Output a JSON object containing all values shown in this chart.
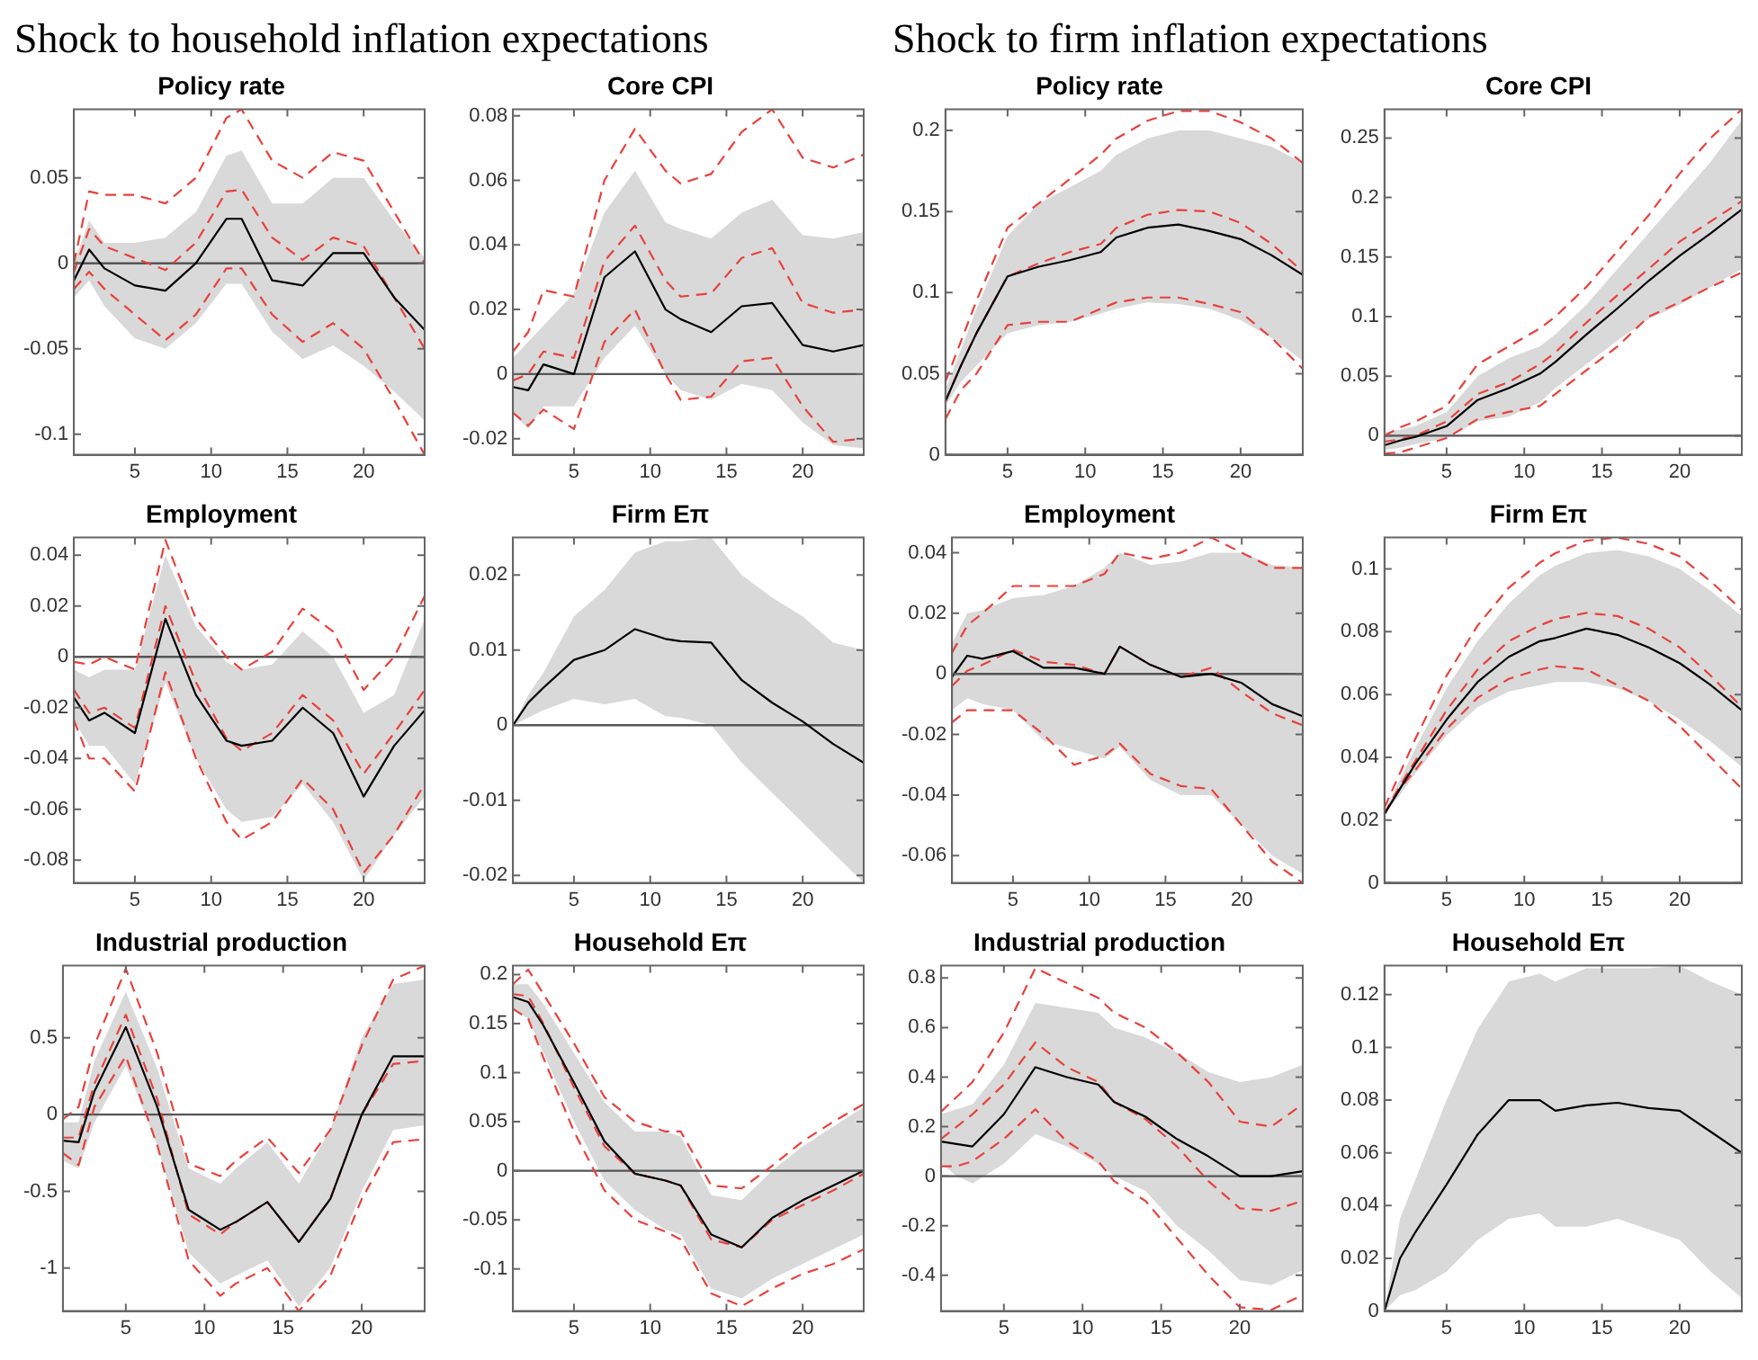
{
  "chart_data": [
    {
      "type": "line",
      "title": "Policy rate",
      "annotations": [
        "Shock to household inflation expectations"
      ],
      "x": [
        1,
        2,
        3,
        5,
        7,
        9,
        11,
        12,
        14,
        16,
        18,
        20,
        22,
        24
      ],
      "xlim": [
        1,
        24
      ],
      "xticks": [
        5,
        10,
        15,
        20
      ],
      "ylim": [
        -0.112,
        0.09
      ],
      "yticks": [
        -0.1,
        -0.05,
        0,
        0.05
      ],
      "ref_lines": [
        {
          "axis": "y",
          "value": 0,
          "color": "#555555"
        }
      ],
      "series": [
        {
          "color": "#000000",
          "values": [
            -0.01,
            0.008,
            -0.003,
            -0.013,
            -0.016,
            0.0,
            0.026,
            0.026,
            -0.01,
            -0.013,
            0.006,
            0.006,
            -0.02,
            -0.039
          ],
          "lower": [
            -0.02,
            -0.01,
            -0.025,
            -0.044,
            -0.05,
            -0.035,
            -0.012,
            -0.012,
            -0.04,
            -0.056,
            -0.048,
            -0.06,
            -0.075,
            -0.092
          ],
          "upper": [
            0.0,
            0.025,
            0.012,
            0.012,
            0.015,
            0.03,
            0.063,
            0.066,
            0.035,
            0.035,
            0.05,
            0.05,
            0.025,
            0.003
          ]
        },
        {
          "color": "#e8413c",
          "line_style": "dashed",
          "values": [
            -0.005,
            0.02,
            0.01,
            0.003,
            -0.004,
            0.012,
            0.042,
            0.043,
            0.015,
            0.002,
            0.015,
            0.01,
            -0.02,
            -0.05
          ]
        },
        {
          "color": "#e8413c",
          "line_style": "dashed",
          "values": [
            0.0,
            0.042,
            0.04,
            0.04,
            0.035,
            0.05,
            0.085,
            0.09,
            0.06,
            0.05,
            0.065,
            0.06,
            0.03,
            0.0
          ]
        },
        {
          "color": "#e8413c",
          "line_style": "dashed",
          "values": [
            -0.015,
            -0.005,
            -0.015,
            -0.03,
            -0.045,
            -0.03,
            -0.003,
            -0.003,
            -0.03,
            -0.046,
            -0.035,
            -0.05,
            -0.08,
            -0.112
          ]
        }
      ]
    },
    {
      "type": "line",
      "title": "Core CPI",
      "x": [
        1,
        2,
        3,
        5,
        7,
        9,
        11,
        12,
        14,
        16,
        18,
        20,
        22,
        24
      ],
      "xlim": [
        1,
        24
      ],
      "xticks": [
        5,
        10,
        15,
        20
      ],
      "ylim": [
        -0.025,
        0.082
      ],
      "yticks": [
        -0.02,
        0,
        0.02,
        0.04,
        0.06,
        0.08
      ],
      "ref_lines": [
        {
          "axis": "y",
          "value": 0,
          "color": "#555555"
        }
      ],
      "series": [
        {
          "color": "#000000",
          "values": [
            -0.004,
            -0.005,
            0.003,
            0.0,
            0.03,
            0.038,
            0.02,
            0.017,
            0.013,
            0.021,
            0.022,
            0.009,
            0.007,
            0.009
          ],
          "lower": [
            -0.012,
            -0.017,
            -0.01,
            -0.01,
            0.005,
            0.015,
            0.0,
            -0.005,
            -0.008,
            -0.003,
            -0.005,
            -0.015,
            -0.022,
            -0.023
          ],
          "upper": [
            0.005,
            0.01,
            0.015,
            0.025,
            0.05,
            0.063,
            0.047,
            0.045,
            0.042,
            0.05,
            0.054,
            0.043,
            0.042,
            0.044
          ]
        },
        {
          "color": "#e8413c",
          "line_style": "dashed",
          "values": [
            -0.002,
            0.0,
            0.007,
            0.005,
            0.035,
            0.046,
            0.029,
            0.024,
            0.025,
            0.036,
            0.039,
            0.022,
            0.019,
            0.02
          ]
        },
        {
          "color": "#e8413c",
          "line_style": "dashed",
          "values": [
            0.007,
            0.013,
            0.026,
            0.024,
            0.06,
            0.076,
            0.063,
            0.059,
            0.062,
            0.075,
            0.082,
            0.067,
            0.064,
            0.068
          ]
        },
        {
          "color": "#e8413c",
          "line_style": "dashed",
          "values": [
            -0.012,
            -0.016,
            -0.011,
            -0.017,
            0.01,
            0.02,
            0.0,
            -0.008,
            -0.007,
            0.004,
            0.005,
            -0.01,
            -0.021,
            -0.02
          ]
        }
      ]
    },
    {
      "type": "line",
      "title": "Employment",
      "x": [
        1,
        2,
        3,
        5,
        7,
        9,
        11,
        12,
        14,
        16,
        18,
        20,
        22,
        24
      ],
      "xlim": [
        1,
        24
      ],
      "xticks": [
        5,
        10,
        15,
        20
      ],
      "ylim": [
        -0.089,
        0.047
      ],
      "yticks": [
        -0.08,
        -0.06,
        -0.04,
        -0.02,
        0,
        0.02,
        0.04
      ],
      "ref_lines": [
        {
          "axis": "y",
          "value": 0,
          "color": "#555555"
        }
      ],
      "series": [
        {
          "color": "#000000",
          "values": [
            -0.016,
            -0.025,
            -0.022,
            -0.03,
            0.015,
            -0.015,
            -0.033,
            -0.035,
            -0.033,
            -0.02,
            -0.03,
            -0.055,
            -0.035,
            -0.021
          ],
          "lower": [
            -0.025,
            -0.035,
            -0.035,
            -0.05,
            -0.01,
            -0.04,
            -0.06,
            -0.065,
            -0.063,
            -0.05,
            -0.065,
            -0.088,
            -0.07,
            -0.055
          ],
          "upper": [
            -0.005,
            -0.008,
            -0.005,
            -0.005,
            0.04,
            0.012,
            -0.002,
            -0.005,
            -0.003,
            0.01,
            0.0,
            -0.022,
            -0.015,
            0.015
          ]
        },
        {
          "color": "#e8413c",
          "line_style": "dashed",
          "values": [
            -0.013,
            -0.022,
            -0.02,
            -0.028,
            0.02,
            -0.01,
            -0.032,
            -0.037,
            -0.03,
            -0.015,
            -0.025,
            -0.046,
            -0.03,
            -0.013
          ]
        },
        {
          "color": "#e8413c",
          "line_style": "dashed",
          "values": [
            -0.002,
            -0.003,
            0.0,
            -0.005,
            0.046,
            0.015,
            0.0,
            -0.005,
            0.002,
            0.019,
            0.01,
            -0.013,
            0.0,
            0.024
          ]
        },
        {
          "color": "#e8413c",
          "line_style": "dashed",
          "values": [
            -0.025,
            -0.04,
            -0.04,
            -0.053,
            -0.006,
            -0.04,
            -0.065,
            -0.072,
            -0.065,
            -0.048,
            -0.06,
            -0.085,
            -0.07,
            -0.05
          ]
        }
      ]
    },
    {
      "type": "line",
      "title": "Firm Eπ",
      "x": [
        1,
        2,
        3,
        5,
        7,
        9,
        11,
        12,
        14,
        16,
        18,
        20,
        22,
        24
      ],
      "xlim": [
        1,
        24
      ],
      "xticks": [
        5,
        10,
        15,
        20
      ],
      "ylim": [
        -0.021,
        0.025
      ],
      "yticks": [
        -0.02,
        -0.01,
        0,
        0.01,
        0.02
      ],
      "ref_lines": [
        {
          "axis": "y",
          "value": 0,
          "color": "#555555"
        }
      ],
      "series": [
        {
          "color": "#000000",
          "values": [
            0.0,
            0.003,
            0.005,
            0.0087,
            0.01,
            0.0128,
            0.0115,
            0.0112,
            0.011,
            0.006,
            0.003,
            0.0005,
            -0.0025,
            -0.005
          ],
          "lower": [
            0.0,
            0.001,
            0.002,
            0.0035,
            0.0028,
            0.0035,
            0.0012,
            0.001,
            0.0,
            -0.005,
            -0.009,
            -0.013,
            -0.017,
            -0.021
          ],
          "upper": [
            0.0,
            0.004,
            0.007,
            0.0145,
            0.018,
            0.023,
            0.0245,
            0.0245,
            0.025,
            0.02,
            0.017,
            0.0145,
            0.011,
            0.01
          ]
        }
      ]
    },
    {
      "type": "line",
      "title": "Industrial production",
      "x": [
        1,
        2,
        3,
        5,
        7,
        9,
        11,
        12,
        14,
        16,
        18,
        20,
        22,
        24
      ],
      "xlim": [
        1,
        24
      ],
      "xticks": [
        5,
        10,
        15,
        20
      ],
      "ylim": [
        -1.28,
        0.97
      ],
      "yticks": [
        -1,
        -0.5,
        0,
        0.5
      ],
      "ref_lines": [
        {
          "axis": "y",
          "value": 0,
          "color": "#555555"
        }
      ],
      "series": [
        {
          "color": "#000000",
          "values": [
            -0.17,
            -0.18,
            0.15,
            0.57,
            0.05,
            -0.62,
            -0.75,
            -0.7,
            -0.57,
            -0.83,
            -0.55,
            0.0,
            0.38,
            0.38
          ],
          "lower": [
            -0.3,
            -0.35,
            -0.05,
            0.32,
            -0.2,
            -0.9,
            -1.1,
            -1.05,
            -0.95,
            -1.25,
            -1.0,
            -0.5,
            -0.1,
            -0.07
          ],
          "upper": [
            -0.05,
            -0.05,
            0.35,
            0.8,
            0.3,
            -0.35,
            -0.45,
            -0.35,
            -0.18,
            -0.45,
            -0.1,
            0.5,
            0.85,
            0.88
          ]
        },
        {
          "color": "#e8413c",
          "line_style": "dashed",
          "values": [
            -0.15,
            -0.15,
            0.2,
            0.65,
            0.1,
            -0.65,
            -0.78,
            -0.7,
            -0.57,
            -0.83,
            -0.55,
            0.0,
            0.33,
            0.35
          ]
        },
        {
          "color": "#e8413c",
          "line_style": "dashed",
          "values": [
            -0.03,
            0.05,
            0.45,
            0.95,
            0.4,
            -0.32,
            -0.4,
            -0.3,
            -0.15,
            -0.38,
            -0.1,
            0.45,
            0.88,
            0.97
          ]
        },
        {
          "color": "#e8413c",
          "line_style": "dashed",
          "values": [
            -0.25,
            -0.33,
            0.05,
            0.38,
            -0.2,
            -0.95,
            -1.18,
            -1.1,
            -1.0,
            -1.28,
            -1.05,
            -0.55,
            -0.18,
            -0.16
          ]
        }
      ]
    },
    {
      "type": "line",
      "title": "Household Eπ",
      "x": [
        1,
        2,
        3,
        5,
        7,
        9,
        11,
        12,
        14,
        16,
        18,
        20,
        22,
        24
      ],
      "xlim": [
        1,
        24
      ],
      "xticks": [
        5,
        10,
        15,
        20
      ],
      "ylim": [
        -0.143,
        0.209
      ],
      "yticks": [
        -0.1,
        -0.05,
        0,
        0.05,
        0.1,
        0.15,
        0.2
      ],
      "ref_lines": [
        {
          "axis": "y",
          "value": 0,
          "color": "#555555"
        }
      ],
      "series": [
        {
          "color": "#000000",
          "values": [
            0.177,
            0.172,
            0.148,
            0.09,
            0.03,
            -0.003,
            -0.01,
            -0.015,
            -0.065,
            -0.078,
            -0.048,
            -0.03,
            -0.015,
            0.0
          ],
          "lower": [
            0.165,
            0.155,
            0.12,
            0.05,
            -0.01,
            -0.04,
            -0.06,
            -0.065,
            -0.12,
            -0.13,
            -0.11,
            -0.095,
            -0.08,
            -0.065
          ],
          "upper": [
            0.19,
            0.19,
            0.17,
            0.12,
            0.07,
            0.04,
            0.04,
            0.035,
            -0.025,
            -0.03,
            0.0,
            0.025,
            0.045,
            0.065
          ]
        },
        {
          "color": "#e8413c",
          "line_style": "dashed",
          "values": [
            0.18,
            0.178,
            0.15,
            0.085,
            0.025,
            -0.003,
            -0.01,
            -0.015,
            -0.07,
            -0.078,
            -0.05,
            -0.035,
            -0.02,
            -0.003
          ]
        },
        {
          "color": "#e8413c",
          "line_style": "dashed",
          "values": [
            0.19,
            0.205,
            0.18,
            0.13,
            0.075,
            0.05,
            0.04,
            0.04,
            -0.015,
            -0.018,
            0.005,
            0.03,
            0.05,
            0.068
          ]
        },
        {
          "color": "#e8413c",
          "line_style": "dashed",
          "values": [
            0.165,
            0.155,
            0.115,
            0.04,
            -0.02,
            -0.05,
            -0.062,
            -0.07,
            -0.125,
            -0.138,
            -0.12,
            -0.105,
            -0.095,
            -0.08
          ]
        }
      ]
    },
    {
      "type": "line",
      "title": "Policy rate",
      "annotations": [
        "Shock to firm inflation expectations"
      ],
      "x": [
        1,
        2,
        3,
        5,
        7,
        9,
        11,
        12,
        14,
        16,
        18,
        20,
        22,
        24
      ],
      "xlim": [
        1,
        24
      ],
      "xticks": [
        5,
        10,
        15,
        20
      ],
      "ylim": [
        0,
        0.213
      ],
      "yticks": [
        0,
        0.05,
        0.1,
        0.15,
        0.2
      ],
      "ref_lines": [
        {
          "axis": "y",
          "value": 0,
          "color": "#555555"
        }
      ],
      "series": [
        {
          "color": "#000000",
          "values": [
            0.033,
            0.055,
            0.075,
            0.11,
            0.116,
            0.12,
            0.125,
            0.134,
            0.14,
            0.142,
            0.138,
            0.133,
            0.123,
            0.111
          ],
          "lower": [
            0.03,
            0.045,
            0.055,
            0.075,
            0.08,
            0.082,
            0.087,
            0.09,
            0.094,
            0.093,
            0.09,
            0.083,
            0.072,
            0.058
          ],
          "upper": [
            0.04,
            0.065,
            0.09,
            0.135,
            0.155,
            0.165,
            0.175,
            0.185,
            0.195,
            0.2,
            0.2,
            0.195,
            0.19,
            0.18
          ]
        },
        {
          "color": "#e8413c",
          "line_style": "dashed",
          "values": [
            0.033,
            0.055,
            0.075,
            0.11,
            0.118,
            0.125,
            0.13,
            0.14,
            0.148,
            0.151,
            0.15,
            0.143,
            0.13,
            0.113
          ]
        },
        {
          "color": "#e8413c",
          "line_style": "dashed",
          "values": [
            0.045,
            0.07,
            0.095,
            0.14,
            0.155,
            0.17,
            0.185,
            0.195,
            0.206,
            0.212,
            0.212,
            0.205,
            0.195,
            0.18
          ]
        },
        {
          "color": "#e8413c",
          "line_style": "dashed",
          "values": [
            0.022,
            0.04,
            0.05,
            0.08,
            0.082,
            0.082,
            0.09,
            0.094,
            0.097,
            0.097,
            0.093,
            0.088,
            0.072,
            0.053
          ]
        }
      ]
    },
    {
      "type": "line",
      "title": "Core CPI",
      "x": [
        1,
        2,
        3,
        5,
        7,
        9,
        11,
        12,
        14,
        16,
        18,
        20,
        22,
        24
      ],
      "xlim": [
        1,
        24
      ],
      "xticks": [
        5,
        10,
        15,
        20
      ],
      "ylim": [
        -0.016,
        0.274
      ],
      "yticks": [
        0,
        0.05,
        0.1,
        0.15,
        0.2,
        0.25
      ],
      "ref_lines": [
        {
          "axis": "y",
          "value": 0,
          "color": "#555555"
        }
      ],
      "series": [
        {
          "color": "#000000",
          "values": [
            -0.008,
            -0.004,
            -0.001,
            0.008,
            0.03,
            0.04,
            0.052,
            0.062,
            0.085,
            0.107,
            0.13,
            0.151,
            0.17,
            0.19
          ],
          "lower": [
            -0.012,
            -0.01,
            -0.007,
            -0.002,
            0.012,
            0.016,
            0.028,
            0.04,
            0.06,
            0.08,
            0.098,
            0.11,
            0.125,
            0.14
          ],
          "upper": [
            0.003,
            0.005,
            0.008,
            0.02,
            0.05,
            0.065,
            0.075,
            0.085,
            0.11,
            0.14,
            0.17,
            0.2,
            0.23,
            0.265
          ]
        },
        {
          "color": "#e8413c",
          "line_style": "dashed",
          "values": [
            -0.005,
            -0.003,
            0.0,
            0.012,
            0.035,
            0.045,
            0.06,
            0.07,
            0.095,
            0.118,
            0.14,
            0.163,
            0.18,
            0.197
          ]
        },
        {
          "color": "#e8413c",
          "line_style": "dashed",
          "values": [
            0.0,
            0.007,
            0.012,
            0.025,
            0.06,
            0.075,
            0.09,
            0.1,
            0.125,
            0.155,
            0.185,
            0.22,
            0.25,
            0.274
          ]
        },
        {
          "color": "#e8413c",
          "line_style": "dashed",
          "values": [
            -0.015,
            -0.014,
            -0.01,
            -0.002,
            0.014,
            0.02,
            0.025,
            0.035,
            0.055,
            0.075,
            0.1,
            0.112,
            0.125,
            0.137
          ]
        }
      ]
    },
    {
      "type": "line",
      "title": "Employment",
      "x": [
        1,
        2,
        3,
        5,
        7,
        9,
        11,
        12,
        14,
        16,
        18,
        20,
        22,
        24
      ],
      "xlim": [
        1,
        24
      ],
      "xticks": [
        5,
        10,
        15,
        20
      ],
      "ylim": [
        -0.069,
        0.045
      ],
      "yticks": [
        -0.06,
        -0.04,
        -0.02,
        0,
        0.02,
        0.04
      ],
      "ref_lines": [
        {
          "axis": "y",
          "value": 0,
          "color": "#555555"
        }
      ],
      "series": [
        {
          "color": "#000000",
          "values": [
            -0.001,
            0.006,
            0.005,
            0.0075,
            0.002,
            0.002,
            0.0,
            0.009,
            0.003,
            -0.001,
            0.0,
            -0.003,
            -0.01,
            -0.014
          ],
          "lower": [
            -0.012,
            -0.008,
            -0.01,
            -0.012,
            -0.022,
            -0.025,
            -0.028,
            -0.024,
            -0.035,
            -0.04,
            -0.04,
            -0.05,
            -0.06,
            -0.066
          ],
          "upper": [
            0.01,
            0.02,
            0.021,
            0.025,
            0.026,
            0.029,
            0.035,
            0.04,
            0.036,
            0.037,
            0.04,
            0.04,
            0.036,
            0.035
          ]
        },
        {
          "color": "#e8413c",
          "line_style": "dashed",
          "values": [
            -0.004,
            0.001,
            0.003,
            0.008,
            0.004,
            0.003,
            0.0,
            0.009,
            0.003,
            -0.001,
            0.002,
            -0.006,
            -0.013,
            -0.017
          ]
        },
        {
          "color": "#e8413c",
          "line_style": "dashed",
          "values": [
            0.007,
            0.016,
            0.02,
            0.029,
            0.029,
            0.029,
            0.033,
            0.04,
            0.038,
            0.04,
            0.045,
            0.04,
            0.035,
            0.035
          ]
        },
        {
          "color": "#e8413c",
          "line_style": "dashed",
          "values": [
            -0.016,
            -0.012,
            -0.012,
            -0.012,
            -0.02,
            -0.03,
            -0.027,
            -0.023,
            -0.033,
            -0.037,
            -0.038,
            -0.05,
            -0.062,
            -0.069
          ]
        }
      ]
    },
    {
      "type": "line",
      "title": "Firm Eπ",
      "x": [
        1,
        2,
        3,
        5,
        7,
        9,
        11,
        12,
        14,
        16,
        18,
        20,
        22,
        24
      ],
      "xlim": [
        1,
        24
      ],
      "xticks": [
        5,
        10,
        15,
        20
      ],
      "ylim": [
        0,
        0.11
      ],
      "yticks": [
        0,
        0.02,
        0.04,
        0.06,
        0.08,
        0.1
      ],
      "ref_lines": [
        {
          "axis": "y",
          "value": 0,
          "color": "#555555"
        }
      ],
      "series": [
        {
          "color": "#000000",
          "values": [
            0.022,
            0.03,
            0.038,
            0.052,
            0.064,
            0.072,
            0.077,
            0.078,
            0.081,
            0.079,
            0.075,
            0.07,
            0.063,
            0.055
          ],
          "lower": [
            0.022,
            0.028,
            0.035,
            0.047,
            0.056,
            0.061,
            0.063,
            0.064,
            0.064,
            0.062,
            0.058,
            0.052,
            0.045,
            0.037
          ],
          "upper": [
            0.023,
            0.033,
            0.043,
            0.062,
            0.077,
            0.089,
            0.098,
            0.101,
            0.105,
            0.106,
            0.104,
            0.1,
            0.093,
            0.085
          ]
        },
        {
          "color": "#e8413c",
          "line_style": "dashed",
          "values": [
            0.022,
            0.031,
            0.039,
            0.055,
            0.068,
            0.077,
            0.082,
            0.084,
            0.086,
            0.085,
            0.081,
            0.075,
            0.066,
            0.056
          ]
        },
        {
          "color": "#e8413c",
          "line_style": "dashed",
          "values": [
            0.024,
            0.035,
            0.046,
            0.066,
            0.082,
            0.094,
            0.102,
            0.105,
            0.109,
            0.11,
            0.108,
            0.104,
            0.096,
            0.087
          ]
        },
        {
          "color": "#e8413c",
          "line_style": "dashed",
          "values": [
            0.022,
            0.03,
            0.036,
            0.049,
            0.059,
            0.065,
            0.068,
            0.069,
            0.068,
            0.063,
            0.058,
            0.05,
            0.04,
            0.03
          ]
        }
      ]
    },
    {
      "type": "line",
      "title": "Industrial production",
      "x": [
        1,
        2,
        3,
        5,
        7,
        9,
        11,
        12,
        14,
        16,
        18,
        20,
        22,
        24
      ],
      "xlim": [
        1,
        24
      ],
      "xticks": [
        5,
        10,
        15,
        20
      ],
      "ylim": [
        -0.545,
        0.85
      ],
      "yticks": [
        -0.4,
        -0.2,
        0,
        0.2,
        0.4,
        0.6,
        0.8
      ],
      "ref_lines": [
        {
          "axis": "y",
          "value": 0,
          "color": "#555555"
        }
      ],
      "series": [
        {
          "color": "#000000",
          "values": [
            0.14,
            0.13,
            0.12,
            0.25,
            0.44,
            0.4,
            0.37,
            0.3,
            0.24,
            0.15,
            0.08,
            0.0,
            0.0,
            0.02
          ],
          "lower": [
            0.05,
            0.0,
            -0.03,
            0.05,
            0.17,
            0.12,
            0.05,
            0.0,
            -0.06,
            -0.2,
            -0.3,
            -0.42,
            -0.44,
            -0.38
          ],
          "upper": [
            0.25,
            0.27,
            0.29,
            0.45,
            0.7,
            0.68,
            0.66,
            0.6,
            0.56,
            0.5,
            0.42,
            0.38,
            0.4,
            0.45
          ]
        },
        {
          "color": "#e8413c",
          "line_style": "dashed",
          "values": [
            0.15,
            0.2,
            0.25,
            0.37,
            0.54,
            0.44,
            0.38,
            0.3,
            0.23,
            0.12,
            -0.02,
            -0.13,
            -0.14,
            -0.1
          ]
        },
        {
          "color": "#e8413c",
          "line_style": "dashed",
          "values": [
            0.26,
            0.32,
            0.38,
            0.58,
            0.84,
            0.78,
            0.72,
            0.66,
            0.6,
            0.5,
            0.38,
            0.22,
            0.2,
            0.29
          ]
        },
        {
          "color": "#e8413c",
          "line_style": "dashed",
          "values": [
            0.04,
            0.04,
            0.06,
            0.15,
            0.27,
            0.14,
            0.06,
            -0.02,
            -0.1,
            -0.25,
            -0.4,
            -0.53,
            -0.54,
            -0.48
          ]
        }
      ]
    },
    {
      "type": "line",
      "title": "Household Eπ",
      "x": [
        1,
        2,
        3,
        5,
        7,
        9,
        11,
        12,
        14,
        16,
        18,
        20,
        22,
        24
      ],
      "xlim": [
        1,
        24
      ],
      "xticks": [
        5,
        10,
        15,
        20
      ],
      "ylim": [
        0,
        0.131
      ],
      "yticks": [
        0,
        0.02,
        0.04,
        0.06,
        0.08,
        0.1,
        0.12
      ],
      "ref_lines": [
        {
          "axis": "y",
          "value": 0,
          "color": "#555555"
        }
      ],
      "series": [
        {
          "color": "#000000",
          "values": [
            0.0,
            0.02,
            0.03,
            0.048,
            0.067,
            0.08,
            0.08,
            0.076,
            0.078,
            0.079,
            0.077,
            0.076,
            0.068,
            0.06
          ],
          "lower": [
            0.0,
            0.006,
            0.008,
            0.015,
            0.027,
            0.035,
            0.037,
            0.032,
            0.032,
            0.035,
            0.031,
            0.027,
            0.015,
            0.005
          ],
          "upper": [
            0.0,
            0.035,
            0.05,
            0.08,
            0.107,
            0.125,
            0.128,
            0.125,
            0.13,
            0.13,
            0.13,
            0.131,
            0.125,
            0.12
          ]
        }
      ]
    }
  ]
}
